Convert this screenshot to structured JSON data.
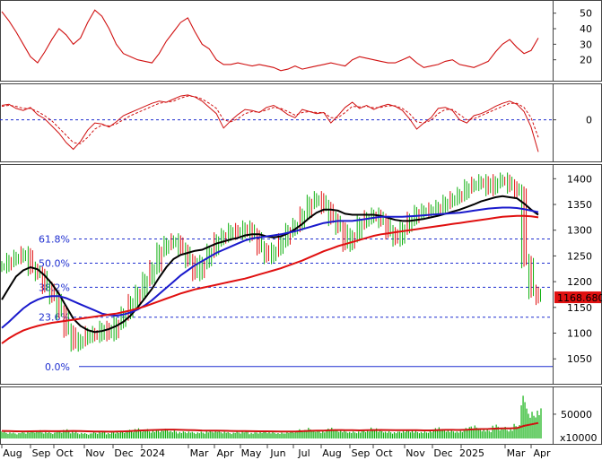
{
  "chart_data": [
    {
      "type": "line",
      "panel": "oscillator",
      "yticks": [
        20,
        30,
        40,
        50
      ],
      "ylim": [
        10,
        55
      ],
      "series": [
        {
          "color": "#d01010",
          "values": [
            51,
            45,
            38,
            30,
            22,
            18,
            25,
            33,
            40,
            36,
            30,
            34,
            44,
            52,
            48,
            40,
            30,
            24,
            22,
            20,
            19,
            18,
            24,
            32,
            38,
            44,
            47,
            38,
            30,
            27,
            20,
            17,
            17,
            18,
            17,
            16,
            17,
            16,
            15,
            13,
            14,
            16,
            14,
            15,
            16,
            17,
            18,
            17,
            16,
            20,
            22,
            21,
            20,
            19,
            18,
            18,
            20,
            22,
            18,
            15,
            16,
            17,
            19,
            20,
            17,
            16,
            15,
            17,
            19,
            25,
            30,
            33,
            28,
            24,
            26,
            34
          ]
        }
      ]
    },
    {
      "type": "line",
      "panel": "momentum",
      "yticks": [
        0
      ],
      "ylim": [
        -7,
        6
      ],
      "zero_line_color": "#1f2fd0",
      "series": [
        {
          "color": "#d01010",
          "values": [
            2.8,
            3.0,
            2.2,
            1.8,
            2.4,
            1.0,
            0.2,
            -1.2,
            -2.6,
            -4.4,
            -5.7,
            -4.2,
            -2.0,
            -0.6,
            -0.8,
            -1.4,
            -0.4,
            0.8,
            1.4,
            2.0,
            2.6,
            3.2,
            3.6,
            3.4,
            4.0,
            4.6,
            4.8,
            4.4,
            3.6,
            2.4,
            1.2,
            -1.6,
            -0.2,
            1.0,
            2.0,
            1.8,
            1.4,
            2.4,
            2.8,
            2.0,
            1.0,
            0.4,
            2.0,
            1.6,
            1.2,
            1.4,
            -0.6,
            0.8,
            2.4,
            3.4,
            2.2,
            2.8,
            2.0,
            2.6,
            3.0,
            2.6,
            1.8,
            0.2,
            -1.8,
            -0.6,
            0.4,
            2.2,
            2.4,
            1.8,
            0.0,
            -0.6,
            0.8,
            1.2,
            1.8,
            2.6,
            3.2,
            3.6,
            3.0,
            1.6,
            -1.4,
            -6.2
          ]
        },
        {
          "color": "#d01010",
          "dashed": true,
          "values": [
            2.6,
            2.8,
            2.6,
            2.2,
            2.2,
            1.6,
            0.8,
            -0.2,
            -1.6,
            -3.0,
            -4.4,
            -4.6,
            -3.4,
            -1.8,
            -1.0,
            -1.2,
            -0.8,
            0.0,
            0.8,
            1.4,
            2.0,
            2.6,
            3.2,
            3.4,
            3.6,
            4.2,
            4.6,
            4.5,
            4.0,
            3.2,
            2.2,
            0.0,
            -0.4,
            0.2,
            1.2,
            1.6,
            1.5,
            1.9,
            2.4,
            2.2,
            1.6,
            0.9,
            1.4,
            1.6,
            1.4,
            1.4,
            0.4,
            0.4,
            1.4,
            2.6,
            2.5,
            2.6,
            2.3,
            2.4,
            2.7,
            2.7,
            2.2,
            1.2,
            -0.4,
            -0.6,
            -0.1,
            1.2,
            2.0,
            2.0,
            1.0,
            0.0,
            0.2,
            0.8,
            1.4,
            2.0,
            2.6,
            3.2,
            3.2,
            2.4,
            0.4,
            -3.4
          ]
        }
      ]
    },
    {
      "type": "line",
      "panel": "price",
      "yticks": [
        1050,
        1100,
        1150,
        1200,
        1250,
        1300,
        1350,
        1400
      ],
      "ylim": [
        1012,
        1418
      ],
      "last_price_label": "1168.680",
      "last_price": 1168.68,
      "fibonacci": [
        {
          "label": "61.8%",
          "level": 1283
        },
        {
          "label": "50.0%",
          "level": 1236
        },
        {
          "label": "38.2%",
          "level": 1189
        },
        {
          "label": "23.6%",
          "level": 1131
        },
        {
          "label": "0.0%",
          "level": 1035
        }
      ],
      "close": [
        1230,
        1242,
        1248,
        1255,
        1225,
        1215,
        1190,
        1170,
        1140,
        1105,
        1078,
        1088,
        1100,
        1095,
        1110,
        1098,
        1120,
        1138,
        1162,
        1180,
        1205,
        1228,
        1262,
        1275,
        1280,
        1262,
        1240,
        1215,
        1238,
        1260,
        1282,
        1290,
        1300,
        1295,
        1305,
        1290,
        1265,
        1248,
        1262,
        1280,
        1300,
        1310,
        1332,
        1355,
        1362,
        1345,
        1322,
        1305,
        1272,
        1290,
        1315,
        1325,
        1330,
        1318,
        1296,
        1282,
        1305,
        1322,
        1335,
        1338,
        1340,
        1345,
        1355,
        1362,
        1370,
        1385,
        1390,
        1395,
        1380,
        1395,
        1398,
        1385,
        1375,
        1240,
        1180,
        1168.68
      ],
      "series": [
        {
          "name": "",
          "color": "#000000",
          "values": [
            1165,
            1188,
            1210,
            1222,
            1228,
            1224,
            1212,
            1196,
            1176,
            1152,
            1128,
            1114,
            1106,
            1102,
            1104,
            1108,
            1114,
            1122,
            1134,
            1150,
            1168,
            1186,
            1208,
            1228,
            1244,
            1252,
            1256,
            1260,
            1262,
            1268,
            1274,
            1278,
            1282,
            1285,
            1290,
            1292,
            1292,
            1288,
            1286,
            1288,
            1294,
            1302,
            1312,
            1324,
            1334,
            1340,
            1340,
            1338,
            1332,
            1330,
            1330,
            1330,
            1330,
            1328,
            1324,
            1320,
            1318,
            1318,
            1320,
            1322,
            1325,
            1328,
            1332,
            1336,
            1340,
            1345,
            1350,
            1356,
            1360,
            1364,
            1366,
            1364,
            1362,
            1352,
            1340,
            1330
          ]
        },
        {
          "name": "",
          "color": "#1a1acc",
          "values": [
            1110,
            1122,
            1135,
            1148,
            1158,
            1165,
            1170,
            1172,
            1172,
            1168,
            1162,
            1156,
            1150,
            1144,
            1138,
            1135,
            1134,
            1136,
            1140,
            1146,
            1154,
            1164,
            1176,
            1188,
            1200,
            1212,
            1222,
            1232,
            1240,
            1248,
            1256,
            1262,
            1268,
            1274,
            1280,
            1284,
            1286,
            1288,
            1290,
            1292,
            1295,
            1298,
            1302,
            1306,
            1310,
            1314,
            1316,
            1318,
            1318,
            1318,
            1320,
            1322,
            1324,
            1326,
            1326,
            1326,
            1326,
            1327,
            1328,
            1329,
            1330,
            1331,
            1332,
            1333,
            1334,
            1336,
            1338,
            1340,
            1342,
            1343,
            1344,
            1344,
            1343,
            1341,
            1338,
            1335
          ]
        },
        {
          "name": "",
          "color": "#e01010",
          "values": [
            1080,
            1090,
            1098,
            1105,
            1110,
            1114,
            1117,
            1120,
            1122,
            1124,
            1126,
            1128,
            1130,
            1132,
            1134,
            1136,
            1138,
            1141,
            1144,
            1148,
            1152,
            1157,
            1162,
            1167,
            1172,
            1177,
            1181,
            1185,
            1188,
            1191,
            1194,
            1197,
            1200,
            1203,
            1206,
            1210,
            1214,
            1218,
            1222,
            1226,
            1231,
            1236,
            1241,
            1247,
            1253,
            1259,
            1264,
            1269,
            1273,
            1277,
            1281,
            1285,
            1289,
            1292,
            1294,
            1296,
            1298,
            1300,
            1302,
            1304,
            1306,
            1308,
            1310,
            1312,
            1314,
            1316,
            1318,
            1320,
            1322,
            1324,
            1326,
            1327,
            1328,
            1328,
            1327,
            1325
          ]
        }
      ]
    },
    {
      "type": "bar",
      "panel": "volume",
      "yticks": [
        50000
      ],
      "ylim": [
        0,
        96000
      ],
      "unit_label": "x10000",
      "values": [
        16000,
        13500,
        12000,
        14000,
        15500,
        17000,
        14500,
        13000,
        16500,
        19000,
        15000,
        12500,
        11000,
        13500,
        15000,
        12000,
        14500,
        16000,
        18000,
        21000,
        19500,
        17000,
        18500,
        20000,
        16500,
        14500,
        15500,
        13500,
        14000,
        16000,
        17500,
        15000,
        13000,
        14500,
        16000,
        12500,
        14500,
        15500,
        13500,
        12000,
        14500,
        16500,
        19000,
        22000,
        17500,
        16000,
        24000,
        19000,
        16500,
        14500,
        15500,
        18500,
        22500,
        17500,
        15000,
        14000,
        16500,
        18000,
        15500,
        14500,
        16500,
        25000,
        19500,
        17000,
        15500,
        23500,
        29000,
        21000,
        18500,
        28500,
        24000,
        20500,
        30000,
        88000,
        55000,
        62000
      ],
      "ma": {
        "color": "#d01010",
        "values": [
          15500,
          15200,
          14800,
          14600,
          14700,
          15000,
          15100,
          14900,
          15000,
          15400,
          15500,
          15200,
          14700,
          14400,
          14300,
          14100,
          14200,
          14500,
          15100,
          16000,
          16800,
          17300,
          17800,
          18300,
          18200,
          17800,
          17400,
          16900,
          16500,
          16200,
          16000,
          15800,
          15500,
          15300,
          15200,
          14900,
          14800,
          14700,
          14500,
          14300,
          14200,
          14400,
          14900,
          15700,
          16100,
          16300,
          17000,
          17300,
          17200,
          16900,
          16700,
          16900,
          17400,
          17500,
          17300,
          17000,
          16900,
          17000,
          16900,
          16700,
          16700,
          17400,
          17700,
          17700,
          17500,
          18100,
          19100,
          19400,
          19500,
          20300,
          20700,
          20700,
          21500,
          26000,
          29000,
          32000
        ]
      }
    }
  ],
  "x_labels": [
    "Aug",
    "Sep",
    "Oct",
    "Nov",
    "Dec",
    "2024",
    "Mar",
    "Apr",
    "May",
    "Jun",
    "Jul",
    "Aug",
    "Sep",
    "Oct",
    "Nov",
    "Dec",
    "2025",
    "Mar",
    "Apr"
  ]
}
